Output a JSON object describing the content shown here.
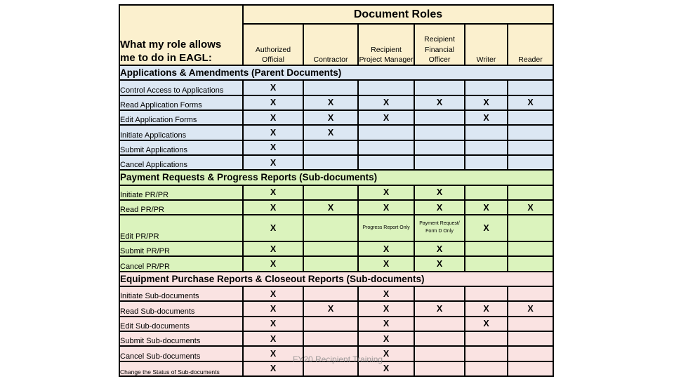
{
  "slide": {
    "title": "Document Roles",
    "left_header_lines": [
      "What my role allows",
      "me to do in EAGL:"
    ],
    "footer": "FY20 Recipient Training"
  },
  "columns": [
    "Authorized Official",
    "Contractor",
    "Recipient Project Manager",
    "Recipient Financial Officer",
    "Writer",
    "Reader"
  ],
  "sections": [
    {
      "title": "Applications & Amendments (Parent Documents)",
      "theme": "blue",
      "rows": [
        {
          "label": "Control Access to Applications",
          "cells": [
            "X",
            "",
            "",
            "",
            "",
            ""
          ]
        },
        {
          "label": "Read Application Forms",
          "cells": [
            "X",
            "X",
            "X",
            "X",
            "X",
            "X"
          ]
        },
        {
          "label": "Edit Application Forms",
          "cells": [
            "X",
            "X",
            "X",
            "",
            "X",
            ""
          ]
        },
        {
          "label": "Initiate Applications",
          "cells": [
            "X",
            "X",
            "",
            "",
            "",
            ""
          ]
        },
        {
          "label": "Submit Applications",
          "cells": [
            "X",
            "",
            "",
            "",
            "",
            ""
          ]
        },
        {
          "label": "Cancel Applications",
          "cells": [
            "X",
            "",
            "",
            "",
            "",
            ""
          ]
        }
      ]
    },
    {
      "title": "Payment Requests & Progress Reports (Sub-documents)",
      "theme": "green",
      "rows": [
        {
          "label": "Initiate PR/PR",
          "cells": [
            "X",
            "",
            "X",
            "X",
            "",
            ""
          ]
        },
        {
          "label": "Read PR/PR",
          "cells": [
            "X",
            "X",
            "X",
            "X",
            "X",
            "X"
          ]
        },
        {
          "label": "Edit PR/PR",
          "cells": [
            "X",
            "",
            "Progress Report Only",
            "Payment Request/ Form D Only",
            "X",
            ""
          ]
        },
        {
          "label": "Submit PR/PR",
          "cells": [
            "X",
            "",
            "X",
            "X",
            "",
            ""
          ]
        },
        {
          "label": "Cancel PR/PR",
          "cells": [
            "X",
            "",
            "X",
            "X",
            "",
            ""
          ]
        }
      ]
    },
    {
      "title": "Equipment Purchase Reports & Closeout Reports (Sub-documents)",
      "theme": "pink",
      "rows": [
        {
          "label": "Initiate Sub-documents",
          "cells": [
            "X",
            "",
            "X",
            "",
            "",
            ""
          ]
        },
        {
          "label": "Read Sub-documents",
          "cells": [
            "X",
            "X",
            "X",
            "X",
            "X",
            "X"
          ]
        },
        {
          "label": "Edit Sub-documents",
          "cells": [
            "X",
            "",
            "X",
            "",
            "X",
            ""
          ]
        },
        {
          "label": "Submit Sub-documents",
          "cells": [
            "X",
            "",
            "X",
            "",
            "",
            ""
          ]
        },
        {
          "label": "Cancel Sub-documents",
          "cells": [
            "X",
            "",
            "X",
            "",
            "",
            ""
          ]
        },
        {
          "label": "Change the Status of Sub-documents",
          "cells": [
            "X",
            "",
            "X",
            "",
            "",
            ""
          ]
        }
      ]
    }
  ],
  "colors": {
    "header_bg": "#FBF0CE",
    "blue": "#DCE7F3",
    "green": "#DBF3BD",
    "pink": "#FAE3E2",
    "grid": "#000000",
    "watermark": "#8a8a8a"
  }
}
